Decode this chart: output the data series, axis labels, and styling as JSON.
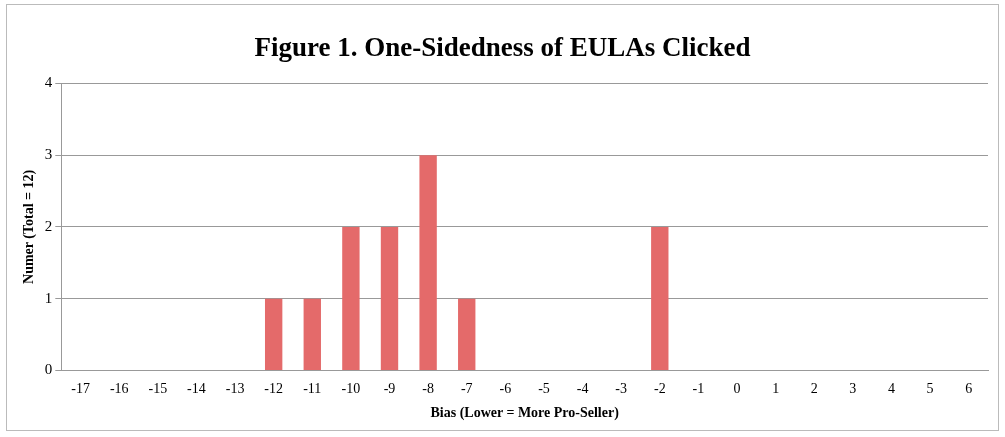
{
  "chart_data": {
    "type": "bar",
    "title": "Figure 1. One-Sidedness of EULAs Clicked",
    "xlabel": "Bias (Lower = More Pro-Seller)",
    "ylabel": "Numer (Total = 12)",
    "categories": [
      "-17",
      "-16",
      "-15",
      "-14",
      "-13",
      "-12",
      "-11",
      "-10",
      "-9",
      "-8",
      "-7",
      "-6",
      "-5",
      "-4",
      "-3",
      "-2",
      "-1",
      "0",
      "1",
      "2",
      "3",
      "4",
      "5",
      "6"
    ],
    "values": [
      0,
      0,
      0,
      0,
      0,
      1,
      1,
      2,
      2,
      3,
      1,
      0,
      0,
      0,
      0,
      2,
      0,
      0,
      0,
      0,
      0,
      0,
      0,
      0
    ],
    "color": "#e46a6a",
    "ylim": [
      0,
      4
    ],
    "yticks": [
      0,
      1,
      2,
      3,
      4
    ],
    "grid": "y",
    "legend": false
  }
}
